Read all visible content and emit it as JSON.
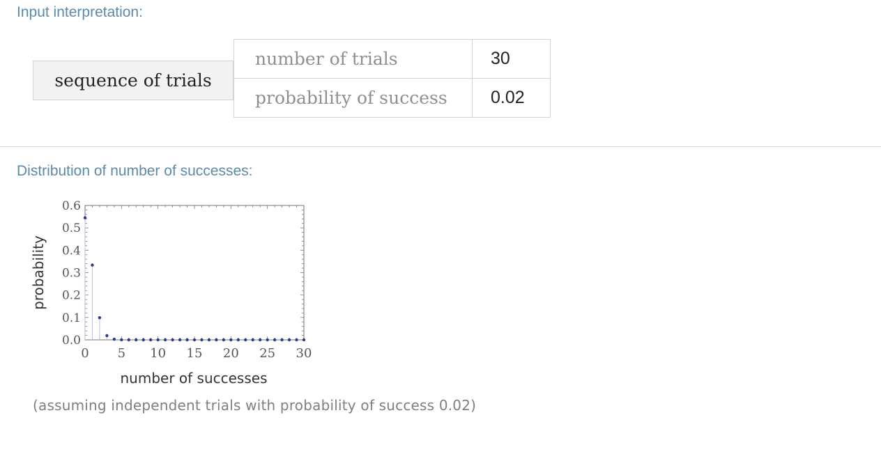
{
  "input_pod": {
    "title": "Input interpretation:",
    "label": "sequence of trials",
    "rows": [
      {
        "name": "number of trials",
        "value": "30"
      },
      {
        "name": "probability of success",
        "value": "0.02"
      }
    ]
  },
  "result_pod": {
    "title": "Distribution of number of successes:",
    "note": "(assuming independent trials with probability of success 0.02)"
  },
  "colors": {
    "pod_title": "#5d8aa8",
    "points": "#2b3a8f",
    "stems": "#b9bde6"
  },
  "chart_data": {
    "type": "scatter",
    "xlabel": "number of successes",
    "ylabel": "probability",
    "xlim": [
      0,
      30
    ],
    "ylim": [
      0,
      0.6
    ],
    "xticks": [
      "0",
      "5",
      "10",
      "15",
      "20",
      "25",
      "30"
    ],
    "yticks": [
      "0.0",
      "0.1",
      "0.2",
      "0.3",
      "0.4",
      "0.5",
      "0.6"
    ],
    "x": [
      0,
      1,
      2,
      3,
      4,
      5,
      6,
      7,
      8,
      9,
      10,
      11,
      12,
      13,
      14,
      15,
      16,
      17,
      18,
      19,
      20,
      21,
      22,
      23,
      24,
      25,
      26,
      27,
      28,
      29,
      30
    ],
    "y": [
      0.545,
      0.334,
      0.099,
      0.019,
      0.003,
      0.0003,
      0,
      0,
      0,
      0,
      0,
      0,
      0,
      0,
      0,
      0,
      0,
      0,
      0,
      0,
      0,
      0,
      0,
      0,
      0,
      0,
      0,
      0,
      0,
      0,
      0
    ],
    "grid": false
  }
}
